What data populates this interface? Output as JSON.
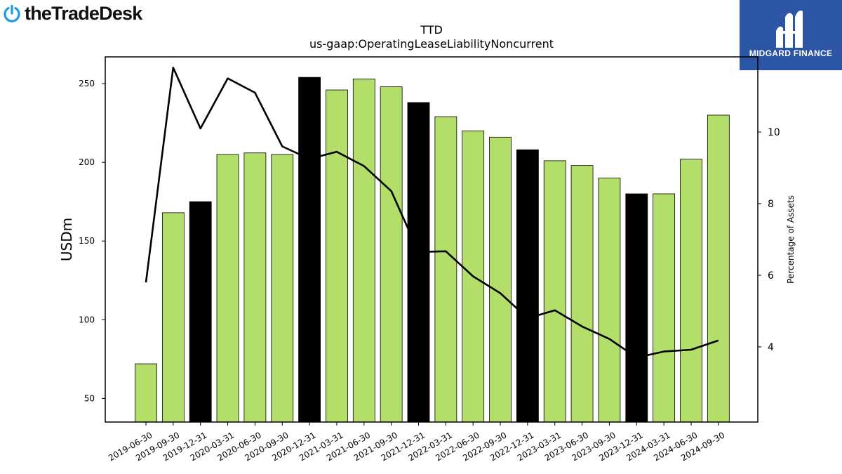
{
  "branding": {
    "logo_text": "theTradeDesk",
    "logo_icon": "power-icon",
    "badge_text": "MIDGARD FINANCE",
    "badge_icon": "midgard-logo-icon",
    "badge_color": "#2c55a6"
  },
  "chart_data": {
    "type": "bar",
    "title": "TTD",
    "subtitle": "us-gaap:OperatingLeaseLiabilityNoncurrent",
    "ylabel": "USDm",
    "y2label": "Percentage of Assets",
    "ylim": [
      35,
      267
    ],
    "y2lim": [
      1.9,
      12.1
    ],
    "yticks": [
      50,
      100,
      150,
      200,
      250
    ],
    "y2ticks": [
      4,
      6,
      8,
      10
    ],
    "categories": [
      "2019-06-30",
      "2019-09-30",
      "2019-12-31",
      "2020-03-31",
      "2020-06-30",
      "2020-09-30",
      "2020-12-31",
      "2021-03-31",
      "2021-06-30",
      "2021-09-30",
      "2021-12-31",
      "2022-03-31",
      "2022-06-30",
      "2022-09-30",
      "2022-12-31",
      "2023-03-31",
      "2023-06-30",
      "2023-09-30",
      "2023-12-31",
      "2024-03-31",
      "2024-06-30",
      "2024-09-30"
    ],
    "series": [
      {
        "type": "bar",
        "values": [
          72,
          168,
          175,
          205,
          206,
          205,
          254,
          246,
          253,
          248,
          238,
          229,
          220,
          216,
          208,
          201,
          198,
          190,
          180,
          180,
          202,
          230
        ]
      },
      {
        "type": "line",
        "axis": "right",
        "values": [
          5.8,
          11.8,
          10.1,
          11.5,
          11.1,
          9.6,
          9.25,
          9.45,
          9.05,
          8.35,
          6.65,
          6.67,
          5.97,
          5.5,
          4.8,
          5.02,
          4.57,
          4.22,
          3.7,
          3.87,
          3.92,
          4.18
        ]
      }
    ],
    "colors": {
      "bar": "#b3de69",
      "bar_highlight": "#000000",
      "bar_edge": "#000000",
      "line": "#000000"
    },
    "highlight_categories": [
      "2019-12-31",
      "2020-12-31",
      "2021-12-31",
      "2022-12-31",
      "2023-12-31"
    ],
    "grid": false,
    "legend": "none"
  }
}
